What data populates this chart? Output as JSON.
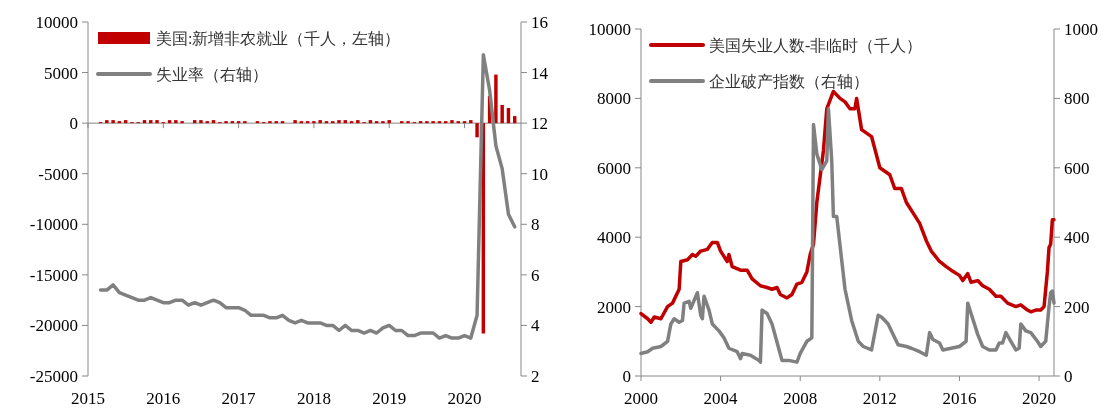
{
  "chart_data": [
    {
      "type": "bar",
      "xlim": [
        "2015",
        "2020-10"
      ],
      "xticks": [
        "2015",
        "2016",
        "2017",
        "2018",
        "2019",
        "2020"
      ],
      "ylim": [
        -25000,
        10000
      ],
      "yticks": [
        -25000,
        -20000,
        -15000,
        -10000,
        -5000,
        0,
        5000,
        10000
      ],
      "y2lim": [
        2,
        16
      ],
      "y2ticks": [
        2,
        4,
        6,
        8,
        10,
        12,
        14,
        16
      ],
      "legend": "top left",
      "x": [
        "2015-03",
        "2015-04",
        "2015-05",
        "2015-06",
        "2015-07",
        "2015-08",
        "2015-09",
        "2015-10",
        "2015-11",
        "2015-12",
        "2016-01",
        "2016-02",
        "2016-03",
        "2016-04",
        "2016-05",
        "2016-06",
        "2016-07",
        "2016-08",
        "2016-09",
        "2016-10",
        "2016-11",
        "2016-12",
        "2017-01",
        "2017-02",
        "2017-03",
        "2017-04",
        "2017-05",
        "2017-06",
        "2017-07",
        "2017-08",
        "2017-09",
        "2017-10",
        "2017-11",
        "2017-12",
        "2018-01",
        "2018-02",
        "2018-03",
        "2018-04",
        "2018-05",
        "2018-06",
        "2018-07",
        "2018-08",
        "2018-09",
        "2018-10",
        "2018-11",
        "2018-12",
        "2019-01",
        "2019-02",
        "2019-03",
        "2019-04",
        "2019-05",
        "2019-06",
        "2019-07",
        "2019-08",
        "2019-09",
        "2019-10",
        "2019-11",
        "2019-12",
        "2020-01",
        "2020-02",
        "2020-03",
        "2020-04",
        "2020-05",
        "2020-06",
        "2020-07",
        "2020-08",
        "2020-09"
      ],
      "series": [
        {
          "name": "美国:新增非农就业（千人，左轴）",
          "color": "#c00000",
          "values": [
            100,
            300,
            300,
            200,
            300,
            100,
            100,
            300,
            300,
            300,
            100,
            300,
            300,
            200,
            0,
            300,
            300,
            200,
            300,
            100,
            200,
            200,
            200,
            200,
            0,
            200,
            100,
            200,
            200,
            200,
            0,
            300,
            200,
            200,
            200,
            300,
            200,
            200,
            300,
            300,
            200,
            300,
            100,
            300,
            200,
            200,
            300,
            0,
            200,
            200,
            100,
            200,
            200,
            200,
            200,
            200,
            300,
            200,
            200,
            300,
            -1400,
            -20800,
            2700,
            4800,
            1800,
            1500,
            700
          ]
        },
        {
          "name": "失业率（右轴）",
          "type": "line",
          "axis": "y2",
          "color": "#808080",
          "values": [
            5.4,
            5.4,
            5.6,
            5.3,
            5.2,
            5.1,
            5.0,
            5.0,
            5.1,
            5.0,
            4.9,
            4.9,
            5.0,
            5.0,
            4.8,
            4.9,
            4.8,
            4.9,
            5.0,
            4.9,
            4.7,
            4.7,
            4.7,
            4.6,
            4.4,
            4.4,
            4.4,
            4.3,
            4.3,
            4.4,
            4.2,
            4.1,
            4.2,
            4.1,
            4.1,
            4.1,
            4.0,
            4.0,
            3.8,
            4.0,
            3.8,
            3.8,
            3.7,
            3.8,
            3.7,
            3.9,
            4.0,
            3.8,
            3.8,
            3.6,
            3.6,
            3.7,
            3.7,
            3.7,
            3.5,
            3.6,
            3.5,
            3.5,
            3.6,
            3.5,
            4.4,
            14.7,
            13.3,
            11.1,
            10.2,
            8.4,
            7.9
          ]
        }
      ]
    },
    {
      "type": "line",
      "xlim": [
        "2000",
        "2020-10"
      ],
      "xticks": [
        "2000",
        "2004",
        "2008",
        "2012",
        "2016",
        "2020"
      ],
      "ylim": [
        0,
        10000
      ],
      "yticks": [
        0,
        2000,
        4000,
        6000,
        8000,
        10000
      ],
      "y2lim": [
        0,
        1000
      ],
      "y2ticks": [
        0,
        200,
        400,
        600,
        800,
        1000
      ],
      "legend": "top left",
      "series": [
        {
          "name": "美国失业人数-非临时（千人）",
          "color": "#c00000",
          "x": [
            "2000-01",
            "2000-05",
            "2000-07",
            "2000-09",
            "2001-01",
            "2001-05",
            "2001-08",
            "2001-12",
            "2002-01",
            "2002-05",
            "2002-08",
            "2002-10",
            "2003-01",
            "2003-05",
            "2003-08",
            "2003-11",
            "2004-01",
            "2004-05",
            "2004-06",
            "2004-08",
            "2005-01",
            "2005-05",
            "2005-08",
            "2006-01",
            "2006-05",
            "2006-08",
            "2006-11",
            "2007-01",
            "2007-05",
            "2007-08",
            "2007-11",
            "2008-02",
            "2008-05",
            "2008-07",
            "2008-09",
            "2008-11",
            "2009-03",
            "2009-05",
            "2009-09",
            "2010-01",
            "2010-04",
            "2010-07",
            "2010-10",
            "2010-11",
            "2011-02",
            "2011-08",
            "2012-01",
            "2012-07",
            "2012-10",
            "2013-02",
            "2013-05",
            "2013-09",
            "2014-01",
            "2014-05",
            "2014-08",
            "2015-01",
            "2015-05",
            "2015-08",
            "2016-01",
            "2016-03",
            "2016-06",
            "2016-08",
            "2016-12",
            "2017-03",
            "2017-07",
            "2017-11",
            "2018-02",
            "2018-06",
            "2018-11",
            "2019-02",
            "2019-06",
            "2019-08",
            "2019-11",
            "2020-02",
            "2020-04",
            "2020-06",
            "2020-07",
            "2020-08",
            "2020-09",
            "2020-10"
          ],
          "values": [
            1800,
            1650,
            1550,
            1700,
            1650,
            2000,
            2100,
            2500,
            3300,
            3350,
            3500,
            3450,
            3600,
            3650,
            3850,
            3850,
            3600,
            3300,
            3500,
            3150,
            3050,
            3050,
            2800,
            2600,
            2550,
            2500,
            2550,
            2350,
            2250,
            2350,
            2650,
            2700,
            3000,
            3500,
            3800,
            5000,
            6500,
            7700,
            8200,
            8000,
            7900,
            7700,
            7700,
            8000,
            7100,
            6900,
            6000,
            5800,
            5400,
            5400,
            5000,
            4700,
            4400,
            3900,
            3600,
            3300,
            3150,
            3050,
            2900,
            2750,
            2950,
            2700,
            2750,
            2600,
            2500,
            2300,
            2300,
            2100,
            2000,
            2050,
            1900,
            1850,
            1900,
            1900,
            2000,
            3000,
            3700,
            3800,
            4500,
            4500
          ]
        },
        {
          "name": "企业破产指数（右轴）",
          "axis": "y2",
          "color": "#808080",
          "x": [
            "2000-01",
            "2000-05",
            "2000-08",
            "2001-01",
            "2001-05",
            "2001-07",
            "2001-09",
            "2001-12",
            "2002-02",
            "2002-03",
            "2002-06",
            "2002-07",
            "2002-11",
            "2003-01",
            "2003-02",
            "2003-03",
            "2003-06",
            "2003-08",
            "2003-12",
            "2004-03",
            "2004-06",
            "2004-11",
            "2005-01",
            "2005-02",
            "2005-07",
            "2005-12",
            "2006-01",
            "2006-02",
            "2006-05",
            "2006-08",
            "2006-12",
            "2007-02",
            "2007-06",
            "2007-11",
            "2008-01",
            "2008-05",
            "2008-08",
            "2008-09",
            "2008-11",
            "2009-02",
            "2009-05",
            "2009-06",
            "2009-08",
            "2009-09",
            "2009-11",
            "2010-04",
            "2010-08",
            "2010-12",
            "2011-03",
            "2011-08",
            "2011-12",
            "2012-02",
            "2012-06",
            "2012-08",
            "2012-12",
            "2013-05",
            "2013-08",
            "2014-01",
            "2014-05",
            "2014-07",
            "2014-09",
            "2015-01",
            "2015-03",
            "2015-08",
            "2016-01",
            "2016-05",
            "2016-06",
            "2016-08",
            "2016-12",
            "2017-03",
            "2017-07",
            "2017-11",
            "2018-01",
            "2018-03",
            "2018-05",
            "2018-08",
            "2018-11",
            "2019-01",
            "2019-02",
            "2019-05",
            "2019-08",
            "2019-12",
            "2020-02",
            "2020-05",
            "2020-07",
            "2020-08",
            "2020-09",
            "2020-10"
          ],
          "values": [
            65,
            70,
            80,
            85,
            100,
            150,
            165,
            155,
            160,
            210,
            215,
            195,
            240,
            175,
            165,
            230,
            190,
            150,
            130,
            110,
            80,
            70,
            50,
            65,
            60,
            45,
            40,
            190,
            180,
            150,
            80,
            45,
            45,
            40,
            65,
            100,
            110,
            725,
            640,
            595,
            620,
            770,
            620,
            460,
            460,
            250,
            160,
            100,
            85,
            75,
            175,
            170,
            150,
            130,
            90,
            85,
            80,
            70,
            60,
            125,
            105,
            95,
            75,
            80,
            85,
            100,
            210,
            180,
            120,
            85,
            75,
            75,
            95,
            95,
            125,
            100,
            75,
            80,
            150,
            130,
            125,
            100,
            85,
            100,
            200,
            240,
            245,
            210
          ]
        }
      ]
    }
  ]
}
